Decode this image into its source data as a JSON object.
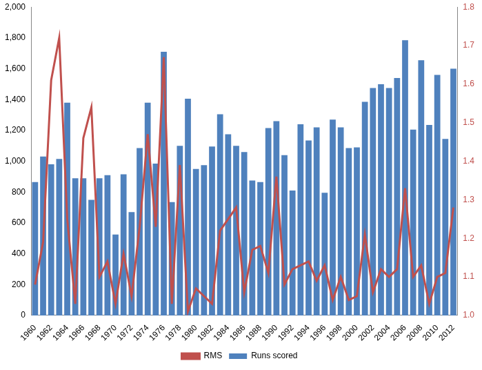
{
  "chart_data": {
    "type": "bar",
    "categories": [
      "1960",
      null,
      "1962",
      null,
      "1964",
      null,
      "1966",
      null,
      "1968",
      null,
      "1970",
      null,
      "1972",
      null,
      "1974",
      null,
      "1976",
      null,
      "1978",
      null,
      "1980",
      null,
      "1982",
      null,
      "1984",
      null,
      "1986",
      null,
      "1988",
      null,
      "1990",
      null,
      "1992",
      null,
      "1994",
      null,
      "1996",
      null,
      "1998",
      null,
      "2000",
      null,
      "2002",
      null,
      "2004",
      null,
      "2006",
      null,
      "2008",
      null,
      "2010",
      null,
      "2012"
    ],
    "series": [
      {
        "name": "Runs scored",
        "type": "bar",
        "color": "#4f81bd",
        "values": [
          865,
          1030,
          980,
          1015,
          1380,
          890,
          890,
          750,
          890,
          910,
          525,
          915,
          670,
          1085,
          1380,
          985,
          1710,
          735,
          1100,
          1405,
          950,
          975,
          1095,
          1305,
          1175,
          1100,
          1060,
          875,
          865,
          1215,
          1260,
          1040,
          810,
          1240,
          1135,
          1220,
          795,
          1270,
          1220,
          1085,
          1090,
          1385,
          1475,
          1500,
          1475,
          1540,
          1785,
          1205,
          1655,
          1235,
          1560,
          1145,
          1600
        ]
      },
      {
        "name": "RMS",
        "type": "line",
        "color": "#c0504d",
        "axis": "y2",
        "values": [
          1.08,
          1.19,
          1.61,
          1.72,
          1.25,
          1.03,
          1.46,
          1.54,
          1.1,
          1.14,
          1.03,
          1.16,
          1.05,
          1.23,
          1.47,
          1.23,
          1.67,
          1.03,
          1.39,
          1.01,
          1.07,
          1.05,
          1.03,
          1.22,
          1.25,
          1.28,
          1.06,
          1.17,
          1.18,
          1.11,
          1.36,
          1.08,
          1.12,
          1.13,
          1.14,
          1.09,
          1.13,
          1.04,
          1.1,
          1.04,
          1.05,
          1.21,
          1.06,
          1.12,
          1.1,
          1.12,
          1.33,
          1.1,
          1.13,
          1.03,
          1.1,
          1.11,
          1.28
        ]
      }
    ],
    "ylim": [
      0,
      2000
    ],
    "yticks": [
      0,
      200,
      400,
      600,
      800,
      {
        "value": 1000,
        "label": "1,000"
      },
      {
        "value": 1200,
        "label": "1,200"
      },
      {
        "value": 1400,
        "label": "1,400"
      },
      {
        "value": 1600,
        "label": "1,600"
      },
      {
        "value": 1800,
        "label": "1,800"
      },
      {
        "value": 2000,
        "label": "2,000"
      }
    ],
    "y2lim": [
      1,
      1.8
    ],
    "y2ticks": [
      {
        "value": 1,
        "label": "1.0"
      },
      1.1,
      1.2,
      1.3,
      1.4,
      1.5,
      1.6,
      1.7,
      1.8
    ],
    "grid": false,
    "legend": "bottom"
  }
}
